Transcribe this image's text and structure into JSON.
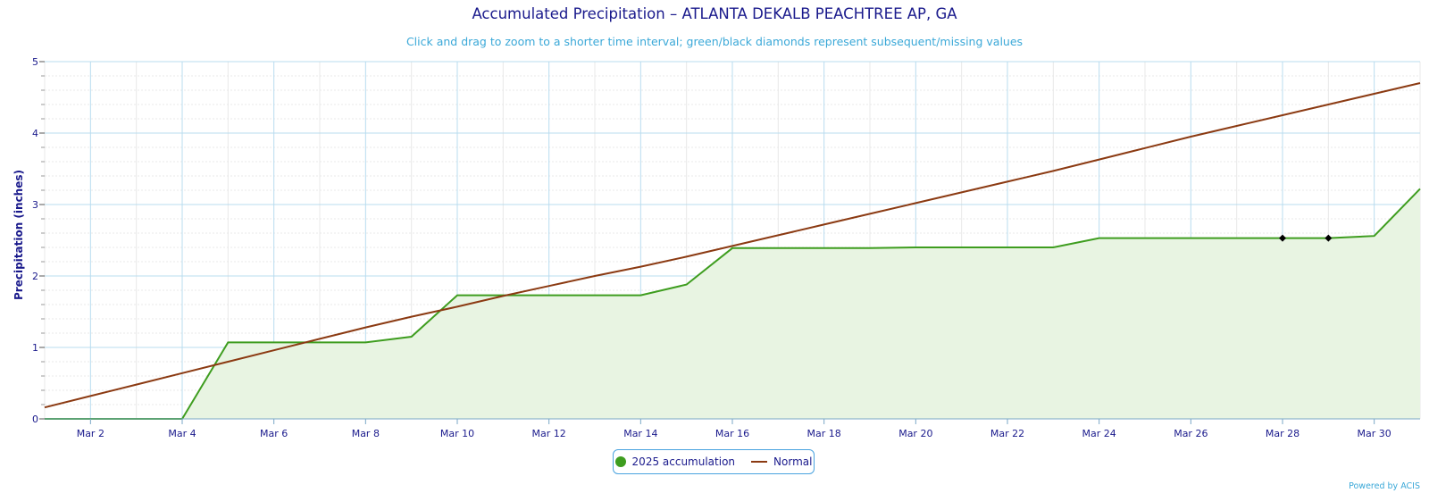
{
  "title": "Accumulated Precipitation – ATLANTA DEKALB PEACHTREE AP, GA",
  "subtitle": "Click and drag to zoom to a shorter time interval; green/black diamonds represent subsequent/missing values",
  "credit": "Powered by ACIS",
  "colors": {
    "accumulation_line": "#3e9d1f",
    "accumulation_fill": "#e8f4e2",
    "normal_line": "#8b3a12",
    "grid": "#b9dcef",
    "minor_grid": "#e8e8e8",
    "text": "#1a1a8c",
    "missing_marker": "#000000"
  },
  "legend": {
    "placement": "bottom-center",
    "items": [
      {
        "label": "2025 accumulation",
        "symbol": "dot",
        "color": "#3e9d1f"
      },
      {
        "label": "Normal",
        "symbol": "line",
        "color": "#8b3a12"
      }
    ]
  },
  "chart_data": {
    "type": "line",
    "title": "Accumulated Precipitation – ATLANTA DEKALB PEACHTREE AP, GA",
    "ylabel": "Precipitation (inches)",
    "xlabel": "",
    "ylim": [
      0,
      5
    ],
    "yticks": [
      0,
      1,
      2,
      3,
      4,
      5
    ],
    "xlim": [
      "Mar 1",
      "Mar 31"
    ],
    "xticks": [
      "Mar 2",
      "Mar 4",
      "Mar 6",
      "Mar 8",
      "Mar 10",
      "Mar 12",
      "Mar 14",
      "Mar 16",
      "Mar 18",
      "Mar 20",
      "Mar 22",
      "Mar 24",
      "Mar 26",
      "Mar 28",
      "Mar 30"
    ],
    "grid": true,
    "x": [
      "Mar 1",
      "Mar 2",
      "Mar 3",
      "Mar 4",
      "Mar 5",
      "Mar 6",
      "Mar 7",
      "Mar 8",
      "Mar 9",
      "Mar 10",
      "Mar 11",
      "Mar 12",
      "Mar 13",
      "Mar 14",
      "Mar 15",
      "Mar 16",
      "Mar 17",
      "Mar 18",
      "Mar 19",
      "Mar 20",
      "Mar 21",
      "Mar 22",
      "Mar 23",
      "Mar 24",
      "Mar 25",
      "Mar 26",
      "Mar 27",
      "Mar 28",
      "Mar 29",
      "Mar 30",
      "Mar 31"
    ],
    "series": [
      {
        "name": "2025 accumulation",
        "values": [
          0,
          0,
          0,
          0,
          1.07,
          1.07,
          1.07,
          1.07,
          1.15,
          1.73,
          1.73,
          1.73,
          1.73,
          1.73,
          1.88,
          2.39,
          2.39,
          2.39,
          2.39,
          2.4,
          2.4,
          2.4,
          2.4,
          2.53,
          2.53,
          2.53,
          2.53,
          2.53,
          2.53,
          2.56,
          3.22
        ],
        "missing_markers": [
          "Mar 28",
          "Mar 29"
        ]
      },
      {
        "name": "Normal",
        "values": [
          0.16,
          0.32,
          0.48,
          0.64,
          0.8,
          0.96,
          1.12,
          1.28,
          1.43,
          1.57,
          1.72,
          1.86,
          2.0,
          2.13,
          2.27,
          2.42,
          2.57,
          2.72,
          2.87,
          3.02,
          3.17,
          3.32,
          3.47,
          3.63,
          3.79,
          3.95,
          4.1,
          4.25,
          4.4,
          4.55,
          4.7
        ]
      }
    ]
  }
}
